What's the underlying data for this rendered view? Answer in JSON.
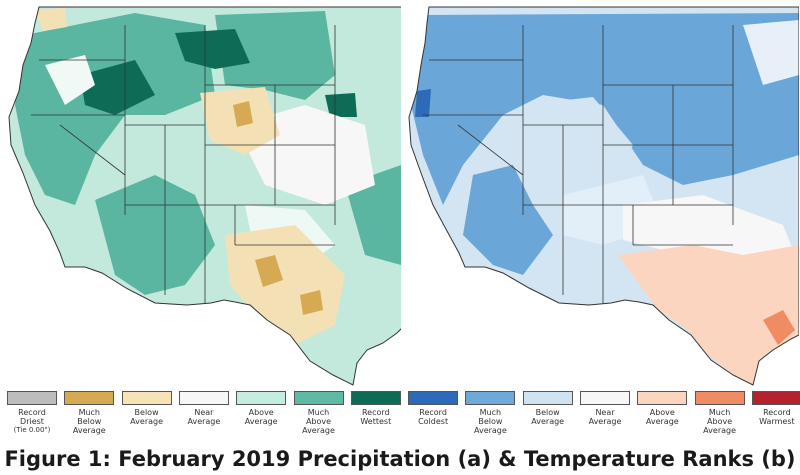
{
  "caption": "Figure 1: February 2019 Precipitation (a) & Temperature Ranks (b)",
  "maps": {
    "precipitation": {
      "land_color": "#cfeee4",
      "dominant_category": "Much Above Average"
    },
    "temperature": {
      "land_color": "#d3e5f3",
      "dominant_category": "Much Below Average"
    }
  },
  "legend": {
    "items": [
      {
        "label": "Record",
        "label2": "Driest",
        "sub": "(Tie 0.00\")",
        "color": "#bdbdbd"
      },
      {
        "label": "Much",
        "label2": "Below",
        "label3": "Average",
        "color": "#d5aa52"
      },
      {
        "label": "Below",
        "label2": "Average",
        "color": "#f6e4b8"
      },
      {
        "label": "Near",
        "label2": "Average",
        "color": "#f7f7f7"
      },
      {
        "label": "Above",
        "label2": "Average",
        "color": "#c4ece0"
      },
      {
        "label": "Much",
        "label2": "Above",
        "label3": "Average",
        "color": "#5fb9a3"
      },
      {
        "label": "Record",
        "label2": "Wettest",
        "color": "#0e6b55"
      },
      {
        "label": "Record",
        "label2": "Coldest",
        "color": "#2d6bb8"
      },
      {
        "label": "Much",
        "label2": "Below",
        "label3": "Average",
        "color": "#6ea9d9"
      },
      {
        "label": "Below",
        "label2": "Average",
        "color": "#cfe3f3"
      },
      {
        "label": "Near",
        "label2": "Average",
        "color": "#f7f7f7"
      },
      {
        "label": "Above",
        "label2": "Average",
        "color": "#fbd5c0"
      },
      {
        "label": "Much",
        "label2": "Above",
        "label3": "Average",
        "color": "#ef8c63"
      },
      {
        "label": "Record",
        "label2": "Warmest",
        "color": "#b5222d"
      }
    ]
  }
}
